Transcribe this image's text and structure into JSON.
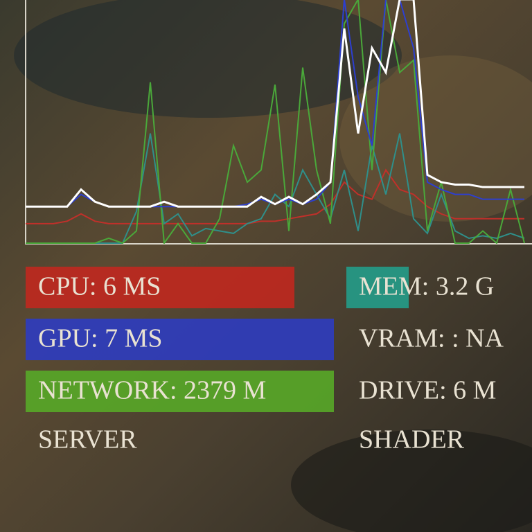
{
  "graph": {
    "series": [
      {
        "color": "#c0302a",
        "values": [
          8,
          8,
          8,
          9,
          12,
          9,
          8,
          8,
          8,
          8,
          8,
          8,
          8,
          8,
          8,
          8,
          8,
          9,
          9,
          10,
          11,
          12,
          16,
          25,
          20,
          18,
          30,
          22,
          20,
          15,
          12,
          10,
          10,
          10,
          10,
          10,
          10
        ]
      },
      {
        "color": "#2f8f8a",
        "values": [
          0,
          0,
          0,
          0,
          0,
          0,
          0,
          0,
          13,
          45,
          8,
          12,
          3,
          6,
          5,
          4,
          8,
          10,
          20,
          15,
          30,
          20,
          10,
          30,
          5,
          40,
          20,
          45,
          10,
          4,
          20,
          5,
          2,
          3,
          2,
          4,
          2
        ]
      },
      {
        "color": "#4aa83a",
        "values": [
          0,
          0,
          0,
          0,
          0,
          0,
          2,
          0,
          5,
          66,
          0,
          8,
          0,
          0,
          10,
          40,
          25,
          30,
          65,
          5,
          72,
          30,
          8,
          90,
          100,
          30,
          100,
          70,
          75,
          5,
          25,
          0,
          0,
          5,
          0,
          22,
          0
        ]
      },
      {
        "color": "#2d3fd0",
        "values": [
          15,
          15,
          15,
          15,
          20,
          17,
          15,
          15,
          15,
          15,
          15,
          15,
          15,
          15,
          15,
          15,
          16,
          18,
          16,
          18,
          16,
          18,
          25,
          100,
          60,
          40,
          100,
          100,
          80,
          25,
          22,
          20,
          20,
          18,
          18,
          18,
          18
        ]
      },
      {
        "color": "#ffffff",
        "values": [
          15,
          15,
          15,
          15,
          22,
          17,
          15,
          15,
          15,
          15,
          17,
          15,
          15,
          15,
          15,
          15,
          15,
          19,
          16,
          19,
          16,
          20,
          25,
          88,
          45,
          80,
          70,
          100,
          100,
          28,
          25,
          24,
          24,
          23,
          23,
          23,
          23
        ]
      }
    ]
  },
  "stats": [
    {
      "text": "CPU: 6 MS",
      "color": "#c0281f"
    },
    {
      "text": "GPU: 7 MS",
      "color": "#2d3cc0"
    },
    {
      "text": "NETWORK: 2379 M",
      "color": "#58a828"
    },
    {
      "text": "SERVER"
    },
    {
      "text": "MEM: 3.2 G",
      "color": "#239c8a"
    },
    {
      "text": "VRAM: : NA"
    },
    {
      "text": "DRIVE: 6 M"
    },
    {
      "text": "SHADER"
    }
  ]
}
